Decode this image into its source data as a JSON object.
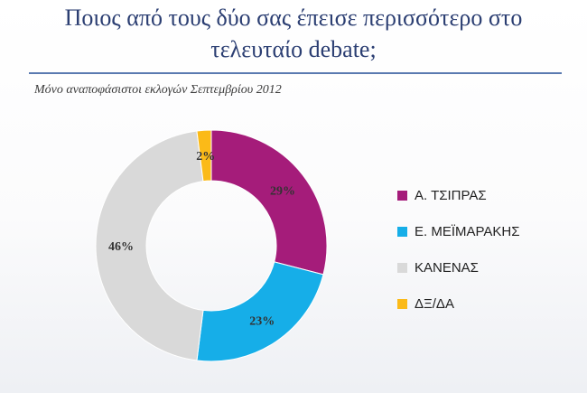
{
  "title_lines": [
    "Ποιος από τους δύο σας έπεισε περισσότερο στο",
    "τελευταίο debate;"
  ],
  "subtitle": "Μόνο αναποφάσιστοι εκλογών Σεπτεμβρίου 2012",
  "colors": {
    "tsipras": "#a51c7a",
    "meimarakis": "#16aee8",
    "kanenas": "#d9d9d9",
    "dxda": "#fbba18"
  },
  "chart_data": {
    "type": "pie",
    "title": "",
    "donut": true,
    "slices": [
      {
        "label": "Α. ΤΣΙΠΡΑΣ",
        "value": 29,
        "value_label": "29%",
        "color": "#a51c7a"
      },
      {
        "label": "Ε. ΜΕΪΜΑΡΑΚΗΣ",
        "value": 23,
        "value_label": "23%",
        "color": "#16aee8"
      },
      {
        "label": "ΚΑΝΕΝΑΣ",
        "value": 46,
        "value_label": "46%",
        "color": "#d9d9d9"
      },
      {
        "label": "ΔΞ/ΔΑ",
        "value": 2,
        "value_label": "2%",
        "color": "#fbba18"
      }
    ],
    "legend_position": "right"
  }
}
